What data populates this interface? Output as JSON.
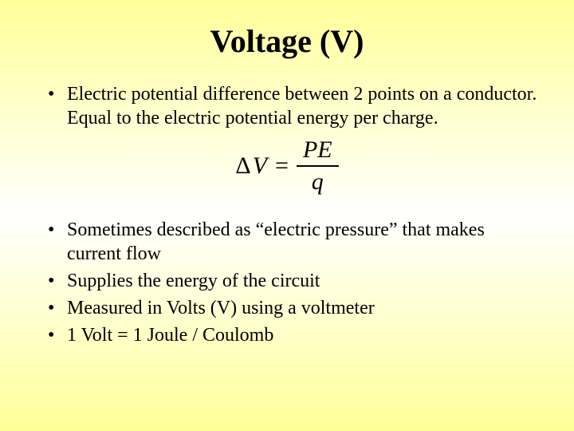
{
  "title": "Voltage (V)",
  "bullets_block1": [
    "Electric potential difference between 2 points on a conductor. Equal to the electric potential energy per charge."
  ],
  "formula": {
    "delta": "Δ",
    "lhs_var": "V",
    "equals": "=",
    "numerator": "PE",
    "denominator": "q"
  },
  "bullets_block2": [
    "Sometimes described as “electric pressure” that makes current flow",
    "Supplies the energy of the circuit",
    "Measured in Volts (V) using a voltmeter",
    "1 Volt = 1 Joule / Coulomb"
  ],
  "colors": {
    "text": "#000000",
    "bg_top": "#ffff99",
    "bg_mid": "#ffffff"
  },
  "typography": {
    "title_fontsize": 40,
    "body_fontsize": 24,
    "formula_fontsize": 30,
    "font_family": "Times New Roman"
  }
}
